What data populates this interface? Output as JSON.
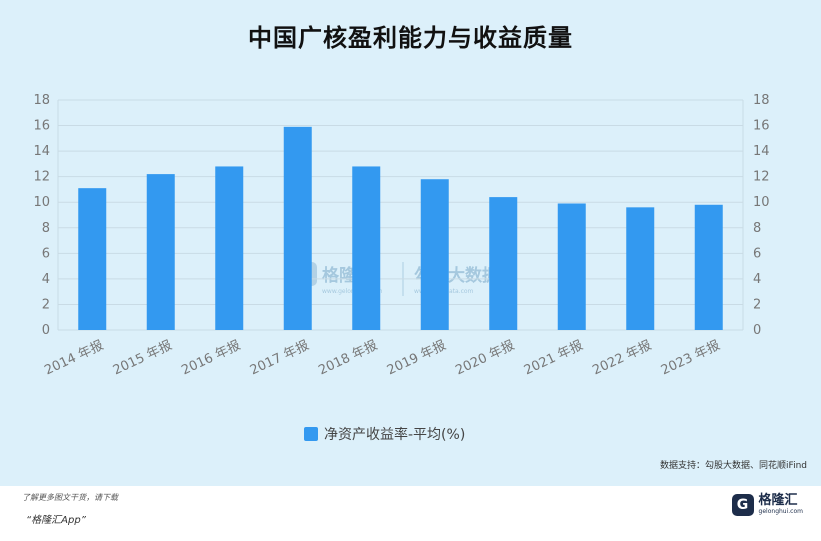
{
  "title": "中国广核盈利能力与收益质量",
  "source": "数据支持：勾股大数据、同花顺iFind",
  "watermark": {
    "brand": "格隆汇",
    "brand_url": "www.gelonghui.com",
    "data_brand": "勾股大数据",
    "data_url": "www.gogudata.com"
  },
  "footer": {
    "tip": "了解更多图文干货，请下载",
    "app": "“格隆汇App”",
    "brand_icon": "G",
    "brand_name": "格隆汇",
    "brand_url": "gelonghui.com"
  },
  "colors": {
    "bar": "#3399f0",
    "grid": "#c9dbe5",
    "text": "#777777"
  },
  "chart_data": {
    "type": "bar",
    "categories": [
      "2014 年报",
      "2015 年报",
      "2016 年报",
      "2017 年报",
      "2018 年报",
      "2019 年报",
      "2020 年报",
      "2021 年报",
      "2022 年报",
      "2023 年报"
    ],
    "series": [
      {
        "name": "净资产收益率-平均(%)",
        "values": [
          11.1,
          12.2,
          12.8,
          15.9,
          12.8,
          11.8,
          10.4,
          9.9,
          9.6,
          9.8
        ]
      }
    ],
    "ylim": [
      0,
      18
    ],
    "yticks": [
      0,
      2,
      4,
      6,
      8,
      10,
      12,
      14,
      16,
      18
    ],
    "y_axis_right": true,
    "grid": true,
    "legend_position": "bottom-center"
  }
}
